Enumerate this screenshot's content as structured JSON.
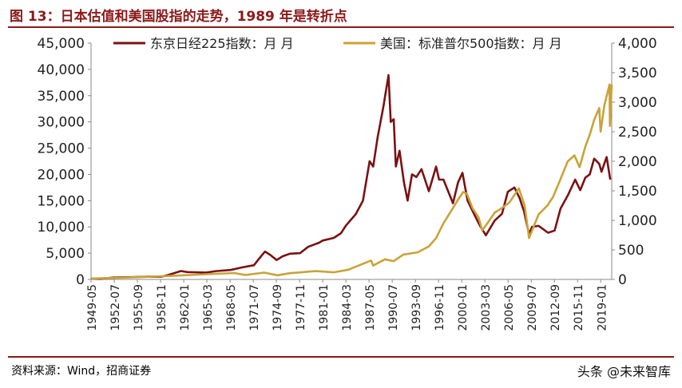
{
  "header": {
    "title": "图 13：日本估值和美国股指的走势，1989 年是转折点"
  },
  "footer": {
    "source": "资料来源：Wind，招商证券",
    "watermark": "头条 @未来智库"
  },
  "chart_data": {
    "type": "line",
    "x_tick_labels": [
      "1949-05",
      "1952-07",
      "1955-09",
      "1958-11",
      "1962-01",
      "1965-03",
      "1968-05",
      "1971-07",
      "1974-09",
      "1977-11",
      "1981-01",
      "1984-03",
      "1987-05",
      "1990-07",
      "1993-09",
      "1996-11",
      "2000-01",
      "2003-03",
      "2006-05",
      "2009-07",
      "2012-09",
      "2015-11",
      "2019-01"
    ],
    "y_left_ticks": [
      "0",
      "5,000",
      "10,000",
      "15,000",
      "20,000",
      "25,000",
      "30,000",
      "35,000",
      "40,000",
      "45,000"
    ],
    "y_right_ticks": [
      "0",
      "500",
      "1,000",
      "1,500",
      "2,000",
      "2,500",
      "3,000",
      "3,500",
      "4,000"
    ],
    "y_left_lim": [
      0,
      45000
    ],
    "y_right_lim": [
      0,
      4000
    ],
    "x_lim": [
      1949.33,
      2020.5
    ],
    "legend_position": "top",
    "grid": false,
    "series": [
      {
        "name": "东京日经225指数：月 月",
        "axis": "left",
        "color": "#7B1113",
        "x": [
          1949.4,
          1950.5,
          1952.5,
          1955,
          1957,
          1958.9,
          1960,
          1961.6,
          1962.5,
          1965,
          1966.5,
          1968.4,
          1970,
          1971.6,
          1972.5,
          1973.1,
          1973.8,
          1974.7,
          1975.5,
          1976.5,
          1977.9,
          1979,
          1980.5,
          1981,
          1982.5,
          1983.5,
          1984.2,
          1985.5,
          1986.5,
          1987.4,
          1987.9,
          1988.5,
          1989.3,
          1989.99,
          1990.3,
          1990.7,
          1991,
          1991.5,
          1992.1,
          1992.6,
          1993.2,
          1993.8,
          1994.5,
          1995.5,
          1996.5,
          1996.9,
          1997.5,
          1998.8,
          1999.5,
          2000.1,
          2000.8,
          2001.5,
          2002.5,
          2003.3,
          2004.5,
          2005.5,
          2006.3,
          2007.2,
          2007.9,
          2008.5,
          2009.2,
          2009.6,
          2010.5,
          2011.8,
          2012.7,
          2013.5,
          2014.5,
          2015.5,
          2016.2,
          2016.9,
          2017.5,
          2018.1,
          2018.8,
          2019.1,
          2019.8,
          2020.3
        ],
        "y": [
          176,
          100,
          360,
          420,
          520,
          500,
          900,
          1600,
          1400,
          1300,
          1600,
          1800,
          2300,
          2700,
          4300,
          5300,
          4700,
          3700,
          4400,
          4900,
          5000,
          6200,
          7000,
          7400,
          7900,
          8800,
          10300,
          12400,
          15000,
          22500,
          21500,
          27000,
          33000,
          38900,
          30000,
          30500,
          21500,
          24500,
          18500,
          15000,
          20000,
          19500,
          21000,
          16800,
          21500,
          19000,
          19000,
          14500,
          18500,
          20300,
          15000,
          13000,
          10200,
          8400,
          11200,
          12500,
          16700,
          17500,
          15500,
          13000,
          8600,
          10000,
          10200,
          8900,
          9300,
          13500,
          16000,
          19000,
          17000,
          19400,
          20000,
          23000,
          22000,
          20500,
          23300,
          19000
        ]
      },
      {
        "name": "美国：标准普尔500指数：月 月",
        "axis": "right",
        "color": "#C9A339",
        "x": [
          1949.4,
          1955,
          1960,
          1965,
          1968.9,
          1970.4,
          1973,
          1974.8,
          1976.5,
          1980,
          1982.5,
          1984.5,
          1987.6,
          1987.9,
          1989.5,
          1990.7,
          1992,
          1994,
          1995.5,
          1996.5,
          1997.5,
          1998.5,
          1999.5,
          2000.2,
          2000.7,
          2001.5,
          2002.3,
          2002.8,
          2003.5,
          2004.5,
          2005.5,
          2006.5,
          2007.8,
          2008.6,
          2009.2,
          2010.5,
          2011.7,
          2012.5,
          2013.5,
          2014.5,
          2015.4,
          2016.1,
          2016.9,
          2017.5,
          2018.1,
          2018.8,
          2018.98,
          2019.5,
          2020.2,
          2020.25,
          2020.5
        ],
        "y": [
          15,
          35,
          58,
          88,
          108,
          75,
          115,
          70,
          105,
          140,
          120,
          165,
          320,
          235,
          340,
          310,
          420,
          460,
          560,
          700,
          950,
          1150,
          1350,
          1480,
          1450,
          1200,
          1050,
          830,
          950,
          1130,
          1210,
          1300,
          1540,
          1250,
          700,
          1100,
          1250,
          1400,
          1700,
          2000,
          2100,
          1900,
          2250,
          2450,
          2700,
          2900,
          2500,
          2950,
          3300,
          2600,
          3300
        ]
      }
    ]
  }
}
